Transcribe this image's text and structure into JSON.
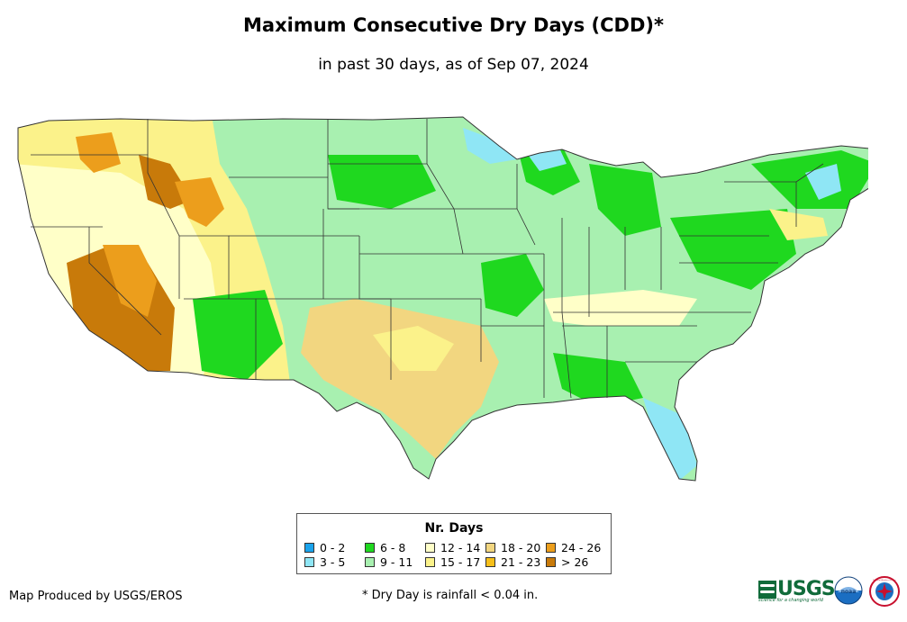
{
  "title": "Maximum Consecutive Dry Days (CDD)*",
  "subtitle": "in past 30 days, as of Sep 07, 2024",
  "legend": {
    "title": "Nr. Days",
    "items": [
      {
        "label": "0 - 2",
        "color": "#1aa3ec"
      },
      {
        "label": "3 - 5",
        "color": "#8fe6f5"
      },
      {
        "label": "6 - 8",
        "color": "#1fd81f"
      },
      {
        "label": "9 - 11",
        "color": "#a8f0b0"
      },
      {
        "label": "12 - 14",
        "color": "#ffffc8"
      },
      {
        "label": "15 - 17",
        "color": "#fbf28a"
      },
      {
        "label": "18 - 20",
        "color": "#f2d680"
      },
      {
        "label": "21 - 23",
        "color": "#f6bf1a"
      },
      {
        "label": "24 - 26",
        "color": "#ec9e1c"
      },
      {
        "label": "> 26",
        "color": "#c87a0a"
      }
    ]
  },
  "credit": "Map Produced by USGS/EROS",
  "footnote": "* Dry Day is rainfall < 0.04 in.",
  "logos": {
    "usgs": "USGS",
    "usgs_tagline": "science for a changing world",
    "noaa": "noaa",
    "nws": "National Weather Service"
  }
}
